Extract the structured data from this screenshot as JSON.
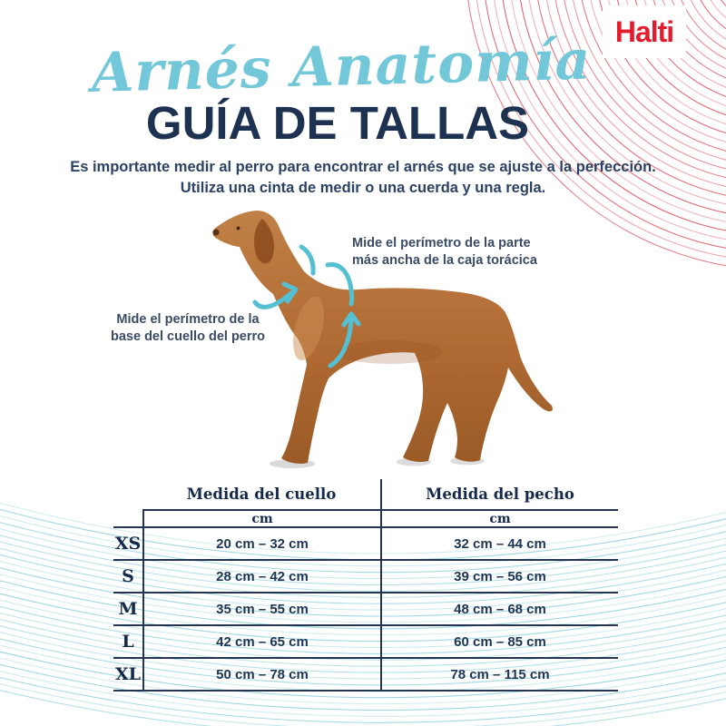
{
  "brand": {
    "logo_text": "Halti"
  },
  "header": {
    "script_title": "Arnés Anatomía",
    "main_title": "GUÍA DE TALLAS",
    "intro_line1": "Es importante medir al perro para encontrar el arnés que se ajuste a la perfección.",
    "intro_line2": "Utiliza una cinta de medir o una cuerda y una regla."
  },
  "diagram": {
    "neck_label_line1": "Mide el perímetro de la",
    "neck_label_line2": "base del cuello del perro",
    "chest_label_line1": "Mide el perímetro de la parte",
    "chest_label_line2": "más ancha de la caja torácica"
  },
  "table": {
    "col1_header": "Medida del cuello",
    "col2_header": "Medida del pecho",
    "unit_label": "cm",
    "rows": [
      {
        "size": "XS",
        "neck": "20 cm – 32 cm",
        "chest": "32 cm – 44 cm"
      },
      {
        "size": "S",
        "neck": "28 cm – 42 cm",
        "chest": "39 cm – 56 cm"
      },
      {
        "size": "M",
        "neck": "35 cm – 55 cm",
        "chest": "48 cm – 68 cm"
      },
      {
        "size": "L",
        "neck": "42 cm – 65 cm",
        "chest": "60 cm – 85 cm"
      },
      {
        "size": "XL",
        "neck": "50 cm – 78 cm",
        "chest": "78 cm – 115 cm"
      }
    ]
  },
  "colors": {
    "navy": "#1d3150",
    "light_blue": "#72c7d9",
    "arrow_teal": "#54c0d2",
    "brand_red": "#e31c2d",
    "wave_red": "#d8404e",
    "wave_teal": "#7ecbd7",
    "dog_coat": "#b06a33",
    "table_line": "#25354f"
  }
}
